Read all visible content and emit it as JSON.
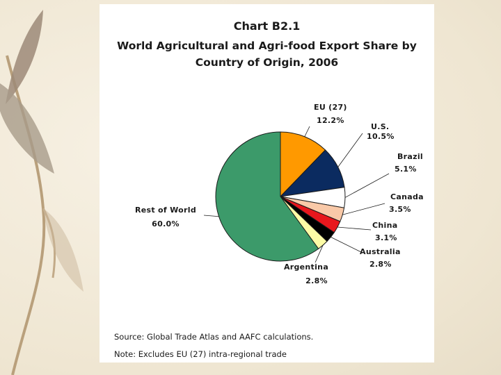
{
  "slide": {
    "chart_number": "Chart B2.1",
    "title_line1": "World Agricultural and Agri-food Export Share by",
    "title_line2": "Country of Origin, 2006",
    "source": "Source: Global Trade Atlas and AAFC calculations.",
    "note": "Note: Excludes EU (27) intra-regional trade"
  },
  "chart_data": {
    "type": "pie",
    "title": "World Agricultural and Agri-food Export Share by Country of Origin, 2006",
    "unit": "%",
    "slices": [
      {
        "name": "EU (27)",
        "value": 12.2,
        "label": "12.2%",
        "color": "#ff9900"
      },
      {
        "name": "U.S.",
        "value": 10.5,
        "label": "10.5%",
        "color": "#0b2b60"
      },
      {
        "name": "Brazil",
        "value": 5.1,
        "label": "5.1%",
        "color": "#ffffff"
      },
      {
        "name": "Canada",
        "value": 3.5,
        "label": "3.5%",
        "color": "#f9c9a8"
      },
      {
        "name": "China",
        "value": 3.1,
        "label": "3.1%",
        "color": "#e8171d"
      },
      {
        "name": "Australia",
        "value": 2.8,
        "label": "2.8%",
        "color": "#000000"
      },
      {
        "name": "Argentina",
        "value": 2.8,
        "label": "2.8%",
        "color": "#fdfca6"
      },
      {
        "name": "Rest of World",
        "value": 60.0,
        "label": "60.0%",
        "color": "#3c9a6a"
      }
    ]
  }
}
